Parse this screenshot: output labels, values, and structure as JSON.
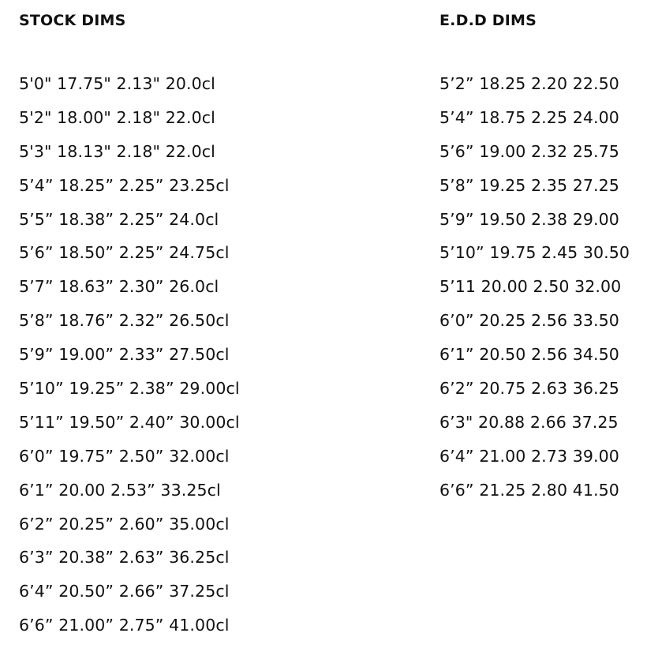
{
  "stock": {
    "title": "STOCK DIMS",
    "rows": [
      "5'0\" 17.75\" 2.13\" 20.0cl",
      "5'2\" 18.00\" 2.18\" 22.0cl",
      "5'3\" 18.13\" 2.18\" 22.0cl",
      "5’4” 18.25” 2.25” 23.25cl",
      "5’5” 18.38” 2.25” 24.0cl",
      "5’6” 18.50” 2.25” 24.75cl",
      "5’7” 18.63” 2.30” 26.0cl",
      "5’8” 18.76” 2.32” 26.50cl",
      "5’9” 19.00” 2.33” 27.50cl",
      "5’10” 19.25” 2.38” 29.00cl",
      "5’11” 19.50” 2.40” 30.00cl",
      "6’0” 19.75” 2.50” 32.00cl",
      "6’1” 20.00 2.53” 33.25cl",
      "6’2” 20.25” 2.60” 35.00cl",
      "6’3” 20.38” 2.63” 36.25cl",
      "6’4” 20.50” 2.66” 37.25cl",
      "6’6” 21.00” 2.75” 41.00cl"
    ]
  },
  "edd": {
    "title": "E.D.D DIMS",
    "rows": [
      "5’2” 18.25 2.20 22.50",
      "5’4” 18.75 2.25 24.00",
      "5’6” 19.00 2.32 25.75",
      "5’8” 19.25 2.35 27.25",
      "5’9” 19.50 2.38 29.00",
      "5’10” 19.75 2.45 30.50",
      "5’11 20.00 2.50 32.00",
      "6’0” 20.25 2.56 33.50",
      "6’1” 20.50 2.56 34.50",
      "6’2” 20.75 2.63 36.25",
      "6’3\" 20.88 2.66 37.25",
      "6’4” 21.00 2.73 39.00",
      "6’6” 21.25 2.80 41.50"
    ]
  }
}
